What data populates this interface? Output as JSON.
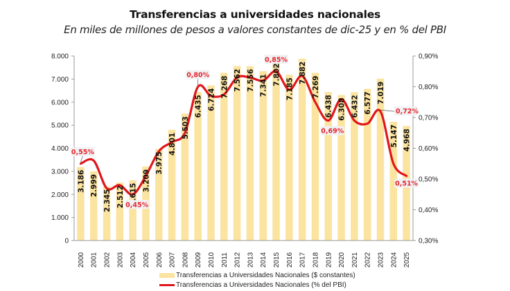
{
  "chart_data": {
    "type": "bar",
    "title": "Transferencias a universidades nacionales",
    "subtitle": "En miles de millones de pesos a valores constantes de dic-25 y en % del PBI",
    "categories": [
      "2000",
      "2001",
      "2002",
      "2003",
      "2004",
      "2005",
      "2006",
      "2007",
      "2008",
      "2009",
      "2010",
      "2011",
      "2012",
      "2013",
      "2014",
      "2015",
      "2016",
      "2017",
      "2018",
      "2019",
      "2020",
      "2021",
      "2022",
      "2023",
      "2024",
      "2025"
    ],
    "series": [
      {
        "name": "Transferencias a Universidades Nacionales ($ constantes)",
        "type": "bar",
        "axis": "left",
        "color": "#fbe3a0",
        "values": [
          3186,
          2999,
          2345,
          2512,
          2615,
          3209,
          3975,
          4801,
          5503,
          6435,
          6724,
          7268,
          7562,
          7556,
          7341,
          7802,
          7185,
          7882,
          7269,
          6438,
          6308,
          6432,
          6577,
          7019,
          5147,
          4968
        ],
        "labels": [
          "3.186",
          "2.999",
          "2.345",
          "2.512",
          "2.615",
          "3.209",
          "3.975",
          "4.801",
          "5.503",
          "6.435",
          "6.724",
          "7.268",
          "7.562",
          "7.556",
          "7.341",
          "7.802",
          "7.185",
          "7.882",
          "7.269",
          "6.438",
          "6.308",
          "6.432",
          "6.577",
          "7.019",
          "5.147",
          "4.968"
        ]
      },
      {
        "name": "Transferencias a Universidades Nacionales (% del PBI)",
        "type": "line",
        "axis": "right",
        "color": "#e0161b",
        "values": [
          0.55,
          0.56,
          0.47,
          0.48,
          0.45,
          0.51,
          0.59,
          0.62,
          0.65,
          0.8,
          0.77,
          0.775,
          0.83,
          0.83,
          0.82,
          0.85,
          0.79,
          0.835,
          0.75,
          0.69,
          0.76,
          0.69,
          0.68,
          0.72,
          0.55,
          0.51
        ]
      }
    ],
    "annotations": [
      {
        "index": 0,
        "label": "0,55%",
        "position": "above"
      },
      {
        "index": 4,
        "label": "0,45%",
        "position": "below"
      },
      {
        "index": 9,
        "label": "0,80%",
        "position": "above"
      },
      {
        "index": 15,
        "label": "0,85%",
        "position": "above"
      },
      {
        "index": 19,
        "label": "0,69%",
        "position": "below"
      },
      {
        "index": 23,
        "label": "0,72%",
        "position": "right"
      },
      {
        "index": 25,
        "label": "0,51%",
        "position": "below"
      }
    ],
    "yleft": {
      "min": 0,
      "max": 8000,
      "ticks": [
        0,
        1000,
        2000,
        3000,
        4000,
        5000,
        6000,
        7000,
        8000
      ],
      "tick_labels": [
        "0",
        "1.000",
        "2.000",
        "3.000",
        "4.000",
        "5.000",
        "6.000",
        "7.000",
        "8.000"
      ]
    },
    "yright": {
      "min": 0.3,
      "max": 0.9,
      "ticks": [
        0.3,
        0.4,
        0.5,
        0.6,
        0.7,
        0.8,
        0.9
      ],
      "tick_labels": [
        "0,30%",
        "0,40%",
        "0,50%",
        "0,60%",
        "0,70%",
        "0,80%",
        "0,90%"
      ]
    },
    "xlabel": "",
    "ylabel": "",
    "grid": false,
    "legend_position": "bottom"
  }
}
